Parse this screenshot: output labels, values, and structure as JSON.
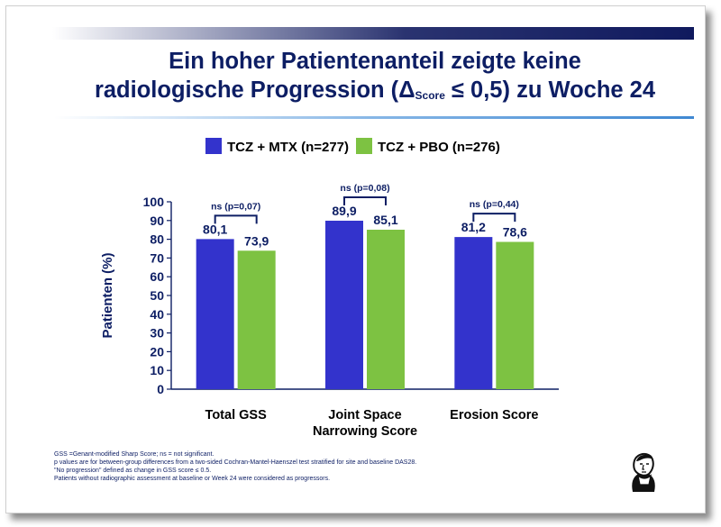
{
  "slide": {
    "title_line1": "Ein hoher Patientenanteil zeigte keine",
    "title_line2_pre": "radiologische Progression (",
    "title_delta": "Δ",
    "title_sub": "Score",
    "title_line2_post": " ≤ 0,5) zu Woche 24",
    "footnotes": [
      "GSS =Genant-modified Sharp Score; ns = not significant.",
      "p values are for between-group differences from a two-sided Cochran-Mantel-Haenszel test stratified for site and baseline DAS28.",
      "\"No progression\" defined as change in GSS score ≤ 0.5.",
      "Patients without radiographic assessment at baseline or Week 24 were considered as progressors."
    ],
    "logo_icon": "goethe-portrait-logo-icon"
  },
  "chart_data": {
    "type": "bar",
    "categories": [
      [
        "Total GSS"
      ],
      [
        "Joint Space",
        "Narrowing Score"
      ],
      [
        "Erosion Score"
      ]
    ],
    "series": [
      {
        "name": "TCZ + MTX (n=277)",
        "values": [
          80.1,
          89.9,
          81.2
        ],
        "labels": [
          "80,1",
          "89,9",
          "81,2"
        ],
        "color": "#3333cc"
      },
      {
        "name": "TCZ + PBO (n=276)",
        "values": [
          73.9,
          85.1,
          78.6
        ],
        "labels": [
          "73,9",
          "85,1",
          "78,6"
        ],
        "color": "#7dc242"
      }
    ],
    "annotations": [
      "ns (p=0,07)",
      "ns (p=0,08)",
      "ns (p=0,44)"
    ],
    "ylabel": "Patienten (%)",
    "xlabel": "",
    "ylim": [
      0,
      100
    ],
    "yticks": [
      0,
      10,
      20,
      30,
      40,
      50,
      60,
      70,
      80,
      90,
      100
    ],
    "grid": false,
    "legend_position": "top"
  }
}
